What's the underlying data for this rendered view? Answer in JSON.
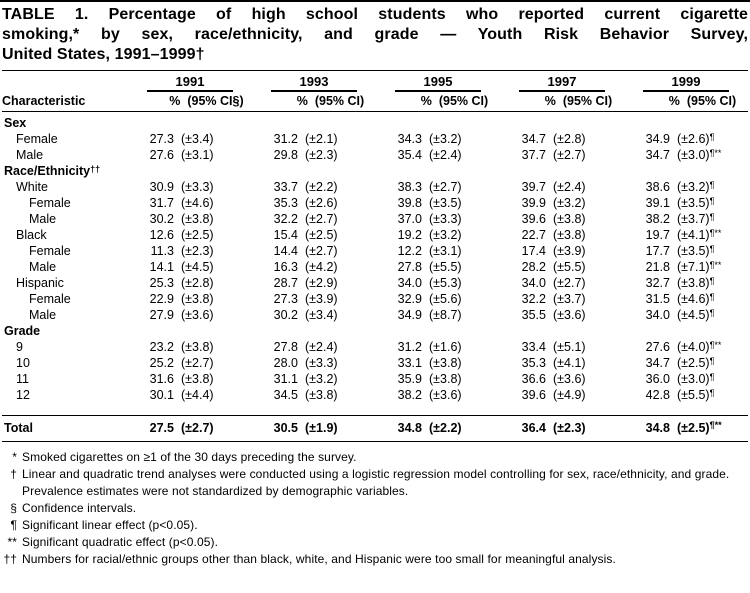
{
  "title_lines": [
    "TABLE 1. Percentage of high school students who reported current cigarette",
    "smoking,* by sex, race/ethnicity, and grade — Youth Risk Behavior Survey,",
    "United States, 1991–1999†"
  ],
  "table": {
    "characteristic_header": "Characteristic",
    "pct_header": "%",
    "years": [
      {
        "label": "1991",
        "ci_header": "(95% CI§)"
      },
      {
        "label": "1993",
        "ci_header": "(95% CI)"
      },
      {
        "label": "1995",
        "ci_header": "(95% CI)"
      },
      {
        "label": "1997",
        "ci_header": "(95% CI)"
      },
      {
        "label": "1999",
        "ci_header": "(95% CI)"
      }
    ],
    "rows": [
      {
        "label": "Sex",
        "sup": "",
        "section": true,
        "indent": 0,
        "cells": null
      },
      {
        "label": "Female",
        "indent": 1,
        "cells": [
          [
            "27.3",
            "(±3.4)",
            ""
          ],
          [
            "31.2",
            "(±2.1)",
            ""
          ],
          [
            "34.3",
            "(±3.2)",
            ""
          ],
          [
            "34.7",
            "(±2.8)",
            ""
          ],
          [
            "34.9",
            "(±2.6)",
            "¶"
          ]
        ]
      },
      {
        "label": "Male",
        "indent": 1,
        "cells": [
          [
            "27.6",
            "(±3.1)",
            ""
          ],
          [
            "29.8",
            "(±2.3)",
            ""
          ],
          [
            "35.4",
            "(±2.4)",
            ""
          ],
          [
            "37.7",
            "(±2.7)",
            ""
          ],
          [
            "34.7",
            "(±3.0)",
            "¶**"
          ]
        ]
      },
      {
        "label": "Race/Ethnicity",
        "sup": "††",
        "section": true,
        "indent": 0,
        "cells": null
      },
      {
        "label": "White",
        "indent": 1,
        "cells": [
          [
            "30.9",
            "(±3.3)",
            ""
          ],
          [
            "33.7",
            "(±2.2)",
            ""
          ],
          [
            "38.3",
            "(±2.7)",
            ""
          ],
          [
            "39.7",
            "(±2.4)",
            ""
          ],
          [
            "38.6",
            "(±3.2)",
            "¶"
          ]
        ]
      },
      {
        "label": "Female",
        "indent": 2,
        "cells": [
          [
            "31.7",
            "(±4.6)",
            ""
          ],
          [
            "35.3",
            "(±2.6)",
            ""
          ],
          [
            "39.8",
            "(±3.5)",
            ""
          ],
          [
            "39.9",
            "(±3.2)",
            ""
          ],
          [
            "39.1",
            "(±3.5)",
            "¶"
          ]
        ]
      },
      {
        "label": "Male",
        "indent": 2,
        "cells": [
          [
            "30.2",
            "(±3.8)",
            ""
          ],
          [
            "32.2",
            "(±2.7)",
            ""
          ],
          [
            "37.0",
            "(±3.3)",
            ""
          ],
          [
            "39.6",
            "(±3.8)",
            ""
          ],
          [
            "38.2",
            "(±3.7)",
            "¶"
          ]
        ]
      },
      {
        "label": "Black",
        "indent": 1,
        "cells": [
          [
            "12.6",
            "(±2.5)",
            ""
          ],
          [
            "15.4",
            "(±2.5)",
            ""
          ],
          [
            "19.2",
            "(±3.2)",
            ""
          ],
          [
            "22.7",
            "(±3.8)",
            ""
          ],
          [
            "19.7",
            "(±4.1)",
            "¶**"
          ]
        ]
      },
      {
        "label": "Female",
        "indent": 2,
        "cells": [
          [
            "11.3",
            "(±2.3)",
            ""
          ],
          [
            "14.4",
            "(±2.7)",
            ""
          ],
          [
            "12.2",
            "(±3.1)",
            ""
          ],
          [
            "17.4",
            "(±3.9)",
            ""
          ],
          [
            "17.7",
            "(±3.5)",
            "¶"
          ]
        ]
      },
      {
        "label": "Male",
        "indent": 2,
        "cells": [
          [
            "14.1",
            "(±4.5)",
            ""
          ],
          [
            "16.3",
            "(±4.2)",
            ""
          ],
          [
            "27.8",
            "(±5.5)",
            ""
          ],
          [
            "28.2",
            "(±5.5)",
            ""
          ],
          [
            "21.8",
            "(±7.1)",
            "¶**"
          ]
        ]
      },
      {
        "label": "Hispanic",
        "indent": 1,
        "cells": [
          [
            "25.3",
            "(±2.8)",
            ""
          ],
          [
            "28.7",
            "(±2.9)",
            ""
          ],
          [
            "34.0",
            "(±5.3)",
            ""
          ],
          [
            "34.0",
            "(±2.7)",
            ""
          ],
          [
            "32.7",
            "(±3.8)",
            "¶"
          ]
        ]
      },
      {
        "label": "Female",
        "indent": 2,
        "cells": [
          [
            "22.9",
            "(±3.8)",
            ""
          ],
          [
            "27.3",
            "(±3.9)",
            ""
          ],
          [
            "32.9",
            "(±5.6)",
            ""
          ],
          [
            "32.2",
            "(±3.7)",
            ""
          ],
          [
            "31.5",
            "(±4.6)",
            "¶"
          ]
        ]
      },
      {
        "label": "Male",
        "indent": 2,
        "cells": [
          [
            "27.9",
            "(±3.6)",
            ""
          ],
          [
            "30.2",
            "(±3.4)",
            ""
          ],
          [
            "34.9",
            "(±8.7)",
            ""
          ],
          [
            "35.5",
            "(±3.6)",
            ""
          ],
          [
            "34.0",
            "(±4.5)",
            "¶"
          ]
        ]
      },
      {
        "label": "Grade",
        "sup": "",
        "section": true,
        "indent": 0,
        "cells": null
      },
      {
        "label": "9",
        "indent": 1,
        "cells": [
          [
            "23.2",
            "(±3.8)",
            ""
          ],
          [
            "27.8",
            "(±2.4)",
            ""
          ],
          [
            "31.2",
            "(±1.6)",
            ""
          ],
          [
            "33.4",
            "(±5.1)",
            ""
          ],
          [
            "27.6",
            "(±4.0)",
            "¶**"
          ]
        ]
      },
      {
        "label": "10",
        "indent": 1,
        "cells": [
          [
            "25.2",
            "(±2.7)",
            ""
          ],
          [
            "28.0",
            "(±3.3)",
            ""
          ],
          [
            "33.1",
            "(±3.8)",
            ""
          ],
          [
            "35.3",
            "(±4.1)",
            ""
          ],
          [
            "34.7",
            "(±2.5)",
            "¶"
          ]
        ]
      },
      {
        "label": "11",
        "indent": 1,
        "cells": [
          [
            "31.6",
            "(±3.8)",
            ""
          ],
          [
            "31.1",
            "(±3.2)",
            ""
          ],
          [
            "35.9",
            "(±3.8)",
            ""
          ],
          [
            "36.6",
            "(±3.6)",
            ""
          ],
          [
            "36.0",
            "(±3.0)",
            "¶"
          ]
        ]
      },
      {
        "label": "12",
        "indent": 1,
        "cells": [
          [
            "30.1",
            "(±4.4)",
            ""
          ],
          [
            "34.5",
            "(±3.8)",
            ""
          ],
          [
            "38.2",
            "(±3.6)",
            ""
          ],
          [
            "39.6",
            "(±4.9)",
            ""
          ],
          [
            "42.8",
            "(±5.5)",
            "¶"
          ]
        ]
      }
    ],
    "total": {
      "label": "Total",
      "cells": [
        [
          "27.5",
          "(±2.7)",
          ""
        ],
        [
          "30.5",
          "(±1.9)",
          ""
        ],
        [
          "34.8",
          "(±2.2)",
          ""
        ],
        [
          "36.4",
          "(±2.3)",
          ""
        ],
        [
          "34.8",
          "(±2.5)",
          "¶**"
        ]
      ]
    }
  },
  "footnotes": [
    {
      "marker": "*",
      "text": "Smoked cigarettes on ≥1 of the 30 days preceding the survey."
    },
    {
      "marker": "†",
      "text": "Linear and quadratic trend analyses were conducted using a logistic regression model controlling for sex, race/ethnicity, and grade. Prevalence estimates were not standardized by demographic variables."
    },
    {
      "marker": "§",
      "text": "Confidence intervals."
    },
    {
      "marker": "¶",
      "text": "Significant linear effect (p<0.05)."
    },
    {
      "marker": "**",
      "text": "Significant quadratic effect (p<0.05)."
    },
    {
      "marker": "††",
      "text": "Numbers for racial/ethnic groups other than black, white, and Hispanic were too small for meaningful analysis."
    }
  ]
}
